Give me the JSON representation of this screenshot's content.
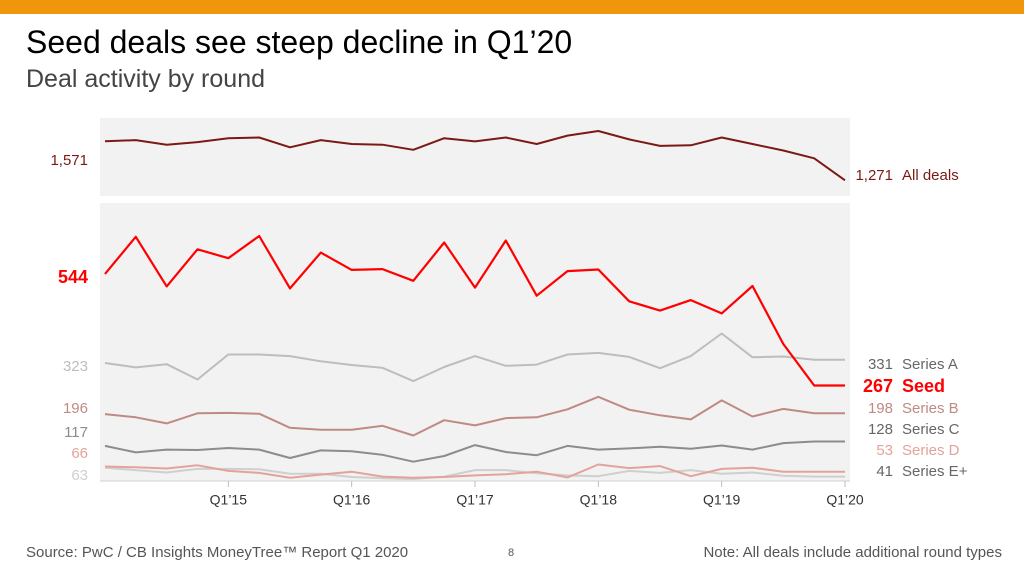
{
  "slide": {
    "title": "Seed deals see steep decline in Q1’20",
    "subtitle": "Deal activity by round",
    "source": "Source: PwC / CB Insights MoneyTree™ Report Q1 2020",
    "page_number": "8",
    "note": "Note: All deals include additional round types",
    "accent_color": "#F0960A"
  },
  "chart_data": [
    {
      "type": "line",
      "panel": "top",
      "x": [
        "Q1'14",
        "Q2'14",
        "Q3'14",
        "Q4'14",
        "Q1'15",
        "Q2'15",
        "Q3'15",
        "Q4'15",
        "Q1'16",
        "Q2'16",
        "Q3'16",
        "Q4'16",
        "Q1'17",
        "Q2'17",
        "Q3'17",
        "Q4'17",
        "Q1'18",
        "Q2'18",
        "Q3'18",
        "Q4'18",
        "Q1'19",
        "Q2'19",
        "Q3'19",
        "Q4'19",
        "Q1'20"
      ],
      "x_tick_labels": [
        "Q1’15",
        "Q1’16",
        "Q1’17",
        "Q1’18",
        "Q1’19",
        "Q1’20"
      ],
      "ylim": [
        1150,
        1750
      ],
      "series": [
        {
          "name": "All deals",
          "color": "#7B1A14",
          "start_label": "1,571",
          "end_label": "1,271",
          "values": [
            1571,
            1580,
            1545,
            1565,
            1595,
            1600,
            1525,
            1580,
            1550,
            1545,
            1505,
            1595,
            1570,
            1600,
            1550,
            1615,
            1650,
            1585,
            1535,
            1540,
            1600,
            1550,
            1500,
            1440,
            1271
          ]
        }
      ]
    },
    {
      "type": "line",
      "panel": "bottom",
      "x": [
        "Q1'14",
        "Q2'14",
        "Q3'14",
        "Q4'14",
        "Q1'15",
        "Q2'15",
        "Q3'15",
        "Q4'15",
        "Q1'16",
        "Q2'16",
        "Q3'16",
        "Q4'16",
        "Q1'17",
        "Q2'17",
        "Q3'17",
        "Q4'17",
        "Q1'18",
        "Q2'18",
        "Q3'18",
        "Q4'18",
        "Q1'19",
        "Q2'19",
        "Q3'19",
        "Q4'19",
        "Q1'20"
      ],
      "x_tick_labels": [
        "Q1’15",
        "Q1’16",
        "Q1’17",
        "Q1’18",
        "Q1’19",
        "Q1’20"
      ],
      "ylim": [
        30,
        720
      ],
      "series": [
        {
          "name": "Seed",
          "color": "#FF0000",
          "start_label": "544",
          "end_label": "267",
          "values": [
            544,
            636,
            513,
            605,
            583,
            638,
            508,
            597,
            554,
            556,
            527,
            622,
            510,
            627,
            490,
            551,
            555,
            476,
            453,
            479,
            446,
            514,
            370,
            267,
            267
          ]
        },
        {
          "name": "Series A",
          "color": "#BDBDBD",
          "start_label": "323",
          "end_label": "331",
          "values": [
            323,
            312,
            320,
            282,
            344,
            344,
            340,
            327,
            318,
            311,
            278,
            313,
            340,
            316,
            319,
            344,
            348,
            338,
            310,
            340,
            396,
            337,
            339,
            331,
            331
          ]
        },
        {
          "name": "Series B",
          "color": "#C08A84",
          "start_label": "196",
          "end_label": "198",
          "values": [
            196,
            188,
            173,
            198,
            199,
            197,
            162,
            157,
            157,
            167,
            143,
            181,
            168,
            186,
            188,
            208,
            239,
            207,
            193,
            183,
            230,
            190,
            209,
            198,
            198
          ]
        },
        {
          "name": "Series C",
          "color": "#8C8C8C",
          "start_label": "117",
          "end_label": "128",
          "values": [
            117,
            101,
            108,
            107,
            112,
            108,
            87,
            106,
            104,
            95,
            78,
            92,
            119,
            102,
            94,
            117,
            108,
            111,
            115,
            110,
            118,
            108,
            124,
            128,
            128
          ]
        },
        {
          "name": "Series D",
          "color": "#E3A39B",
          "start_label": "66",
          "end_label": "53",
          "values": [
            66,
            64,
            61,
            69,
            55,
            50,
            38,
            46,
            53,
            41,
            38,
            40,
            44,
            47,
            53,
            39,
            71,
            62,
            67,
            42,
            60,
            63,
            53,
            53,
            53
          ]
        },
        {
          "name": "Series E+",
          "color": "#CFCFCF",
          "start_label": "63",
          "end_label": "41",
          "values": [
            63,
            57,
            51,
            60,
            60,
            59,
            48,
            48,
            40,
            37,
            35,
            41,
            57,
            57,
            49,
            44,
            42,
            55,
            50,
            57,
            48,
            51,
            43,
            41,
            41
          ]
        }
      ]
    }
  ]
}
